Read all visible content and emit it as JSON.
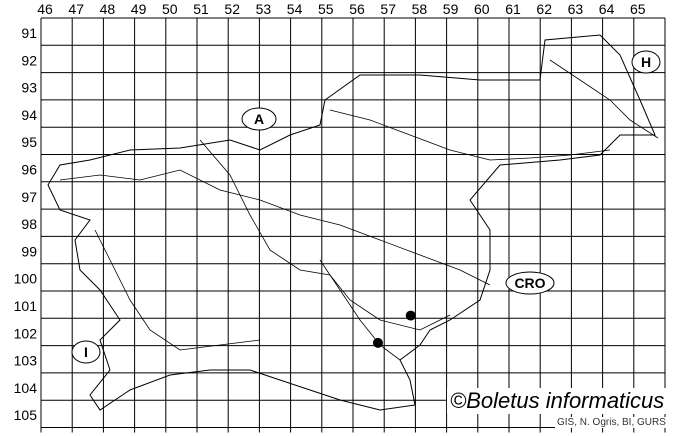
{
  "map": {
    "columns": [
      "46",
      "47",
      "48",
      "49",
      "50",
      "51",
      "52",
      "53",
      "54",
      "55",
      "56",
      "57",
      "58",
      "59",
      "60",
      "61",
      "62",
      "63",
      "64",
      "65"
    ],
    "rows": [
      "91",
      "92",
      "93",
      "94",
      "95",
      "96",
      "97",
      "98",
      "99",
      "100",
      "101",
      "102",
      "103",
      "104",
      "105"
    ],
    "country_labels": [
      {
        "text": "A",
        "neighbor": "Austria"
      },
      {
        "text": "H",
        "neighbor": "Hungary"
      },
      {
        "text": "CRO",
        "neighbor": "Croatia"
      },
      {
        "text": "I",
        "neighbor": "Italy"
      }
    ],
    "records": [
      {
        "column": "56",
        "row": "102"
      },
      {
        "column": "57",
        "row": "101"
      }
    ],
    "point_color": "#000000"
  },
  "copyright": "©Boletus informaticus",
  "credit": "GIS, N. Ogris, BI, GURS"
}
